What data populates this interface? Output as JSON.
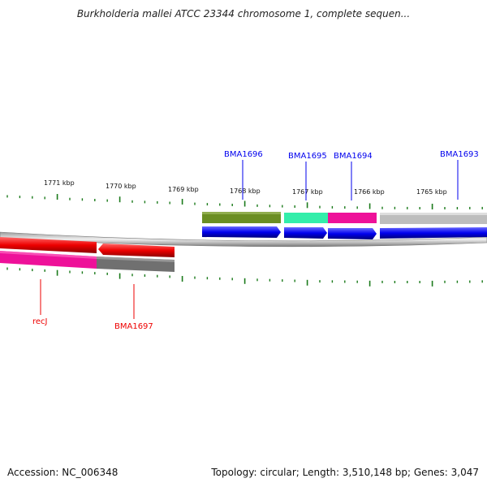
{
  "title": "Burkholderia mallei ATCC 23344 chromosome 1, complete sequen...",
  "footer": {
    "accession": "Accession: NC_006348",
    "stats": "Topology: circular; Length: 3,510,148 bp; Genes: 3,047"
  },
  "map": {
    "strand_colors": {
      "plus": "#0000ee",
      "minus": "#ee0000"
    },
    "tick_color": "#1a7a1a",
    "tick_labels": [
      {
        "text": "1771 kbp",
        "kbp": 1771
      },
      {
        "text": "1770 kbp",
        "kbp": 1770
      },
      {
        "text": "1769 kbp",
        "kbp": 1769
      },
      {
        "text": "1768 kbp",
        "kbp": 1768
      },
      {
        "text": "1767 kbp",
        "kbp": 1767
      },
      {
        "text": "1766 kbp",
        "kbp": 1766
      },
      {
        "text": "1765 kbp",
        "kbp": 1765
      }
    ],
    "genes": [
      {
        "label": "BMA1696",
        "strand": "plus",
        "color": "#0000ee",
        "feature_color": "#6b8e23"
      },
      {
        "label": "BMA1695",
        "strand": "plus",
        "color": "#0000ee",
        "feature_color": "#33eeaa"
      },
      {
        "label": "BMA1694",
        "strand": "plus",
        "color": "#0000ee",
        "feature_color": "#ee1199"
      },
      {
        "label": "BMA1693",
        "strand": "plus",
        "color": "#0000ee",
        "feature_color": "#bdbdbd"
      },
      {
        "label": "recJ",
        "strand": "minus",
        "color": "#ee0000",
        "feature_color": "#ee1199"
      },
      {
        "label": "BMA1697",
        "strand": "minus",
        "color": "#ee0000",
        "feature_color": "#707070"
      }
    ]
  }
}
